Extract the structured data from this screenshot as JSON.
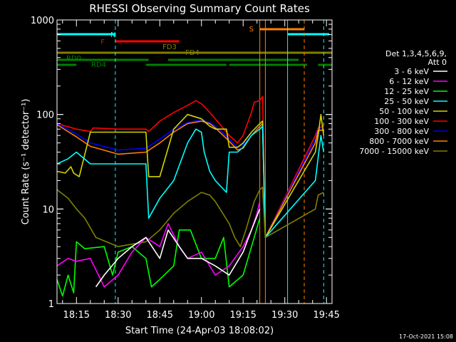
{
  "chart_data": {
    "type": "line",
    "title": "RHESSI Observing Summary Count Rates",
    "xlabel": "Start Time (24-Apr-03 18:08:02)",
    "ylabel": "Count Rate (s⁻¹ detector⁻¹)",
    "yscale": "log",
    "xlim": [
      "18:08",
      "19:47"
    ],
    "ylim": [
      1,
      1000
    ],
    "x_ticks": [
      "18:15",
      "18:30",
      "18:45",
      "19:00",
      "19:15",
      "19:30",
      "19:45"
    ],
    "y_ticks": [
      "1",
      "10",
      "100",
      "1000"
    ],
    "footer": "17-Oct-2021 15:08",
    "legend": {
      "header": [
        "Det 1,3,4,5,6,9,",
        "Att 0"
      ],
      "placement": "right",
      "entries": [
        {
          "label": "3 - 6 keV",
          "color": "#ffffff"
        },
        {
          "label": "6 - 12 keV",
          "color": "#ff00ff"
        },
        {
          "label": "12 - 25 keV",
          "color": "#00ff00"
        },
        {
          "label": "25 - 50 keV",
          "color": "#00ffff"
        },
        {
          "label": "50 - 100 keV",
          "color": "#d4d400"
        },
        {
          "label": "100 - 300 keV",
          "color": "#ff0000"
        },
        {
          "label": "300 - 800 keV",
          "color": "#0000ff"
        },
        {
          "label": "800 - 7000 keV",
          "color": "#ff8000"
        },
        {
          "label": "7000 - 15000 keV",
          "color": "#808000"
        }
      ]
    },
    "flag_bars": [
      {
        "label": "N",
        "color": "#00ffff",
        "segments": [
          [
            "18:08",
            "18:29"
          ],
          [
            "19:31",
            "19:46"
          ]
        ]
      },
      {
        "label": "S",
        "color": "#ff8000",
        "segments": [
          [
            "19:21",
            "19:37"
          ]
        ]
      },
      {
        "label": "F",
        "color": "#ff0000",
        "segments": [
          [
            "18:29",
            "18:52"
          ]
        ]
      },
      {
        "label": "FD3",
        "color": "#808000",
        "segments": [
          [
            "18:08",
            "19:47"
          ]
        ]
      },
      {
        "label": "FD4",
        "color": "#808000",
        "segments": []
      },
      {
        "label": "RD0",
        "color": "#008000",
        "segments": [
          [
            "18:08",
            "18:41"
          ],
          [
            "18:48",
            "19:35"
          ]
        ]
      },
      {
        "label": "RD4",
        "color": "#008000",
        "segments": [
          [
            "18:08",
            "18:15"
          ],
          [
            "18:40",
            "19:09"
          ],
          [
            "19:10",
            "19:38"
          ],
          [
            "19:42",
            "19:47"
          ]
        ]
      }
    ],
    "vertical_markers": [
      {
        "x": "18:29",
        "color": "#00ffff",
        "style": "dashed"
      },
      {
        "x": "19:21",
        "color": "#ff8000",
        "style": "solid"
      },
      {
        "x": "19:23",
        "color": "#ff8000",
        "style": "solid"
      },
      {
        "x": "19:31",
        "color": "#00ffff",
        "style": "solid"
      },
      {
        "x": "19:37",
        "color": "#ff8000",
        "style": "dashed"
      },
      {
        "x": "19:44",
        "color": "#00ffff",
        "style": "dashed"
      }
    ],
    "series": [
      {
        "name": "100 - 300 keV",
        "color": "#ff0000",
        "points": [
          [
            "18:08",
            80
          ],
          [
            "18:15",
            70
          ],
          [
            "18:20",
            66
          ],
          [
            "18:21",
            72
          ],
          [
            "18:30",
            70
          ],
          [
            "18:40",
            70
          ],
          [
            "18:41",
            66
          ],
          [
            "18:45",
            85
          ],
          [
            "18:50",
            105
          ],
          [
            "18:55",
            125
          ],
          [
            "18:58",
            140
          ],
          [
            "19:00",
            130
          ],
          [
            "19:03",
            105
          ],
          [
            "19:05",
            90
          ],
          [
            "19:10",
            60
          ],
          [
            "19:13",
            50
          ],
          [
            "19:15",
            60
          ],
          [
            "19:18",
            105
          ],
          [
            "19:19",
            135
          ],
          [
            "19:21",
            140
          ],
          [
            "19:22",
            155
          ],
          [
            "19:23",
            5
          ],
          [
            "19:41",
            60
          ],
          [
            "19:42",
            72
          ],
          [
            "19:44",
            75
          ]
        ]
      },
      {
        "name": "300 - 800 keV",
        "color": "#0000ff",
        "points": [
          [
            "18:08",
            80
          ],
          [
            "18:15",
            62
          ],
          [
            "18:20",
            50
          ],
          [
            "18:30",
            42
          ],
          [
            "18:40",
            44
          ],
          [
            "18:45",
            55
          ],
          [
            "18:50",
            70
          ],
          [
            "18:55",
            82
          ],
          [
            "19:00",
            88
          ],
          [
            "19:03",
            82
          ],
          [
            "19:05",
            75
          ],
          [
            "19:10",
            55
          ],
          [
            "19:13",
            45
          ],
          [
            "19:15",
            48
          ],
          [
            "19:18",
            65
          ],
          [
            "19:21",
            80
          ],
          [
            "19:22",
            85
          ],
          [
            "19:23",
            5
          ],
          [
            "19:41",
            55
          ],
          [
            "19:42",
            70
          ],
          [
            "19:44",
            70
          ]
        ]
      },
      {
        "name": "800 - 7000 keV",
        "color": "#ff8000",
        "points": [
          [
            "18:08",
            78
          ],
          [
            "18:15",
            58
          ],
          [
            "18:20",
            46
          ],
          [
            "18:30",
            38
          ],
          [
            "18:40",
            40
          ],
          [
            "18:45",
            50
          ],
          [
            "18:50",
            65
          ],
          [
            "18:55",
            80
          ],
          [
            "19:00",
            85
          ],
          [
            "19:03",
            80
          ],
          [
            "19:05",
            72
          ],
          [
            "19:10",
            52
          ],
          [
            "19:13",
            42
          ],
          [
            "19:15",
            44
          ],
          [
            "19:18",
            60
          ],
          [
            "19:21",
            75
          ],
          [
            "19:22",
            80
          ],
          [
            "19:23",
            5
          ],
          [
            "19:41",
            50
          ],
          [
            "19:42",
            68
          ],
          [
            "19:44",
            68
          ]
        ]
      },
      {
        "name": "50 - 100 keV",
        "color": "#d4d400",
        "points": [
          [
            "18:08",
            25
          ],
          [
            "18:11",
            24
          ],
          [
            "18:13",
            28
          ],
          [
            "18:14",
            24
          ],
          [
            "18:16",
            22
          ],
          [
            "18:20",
            65
          ],
          [
            "18:30",
            65
          ],
          [
            "18:40",
            65
          ],
          [
            "18:41",
            22
          ],
          [
            "18:45",
            22
          ],
          [
            "18:50",
            70
          ],
          [
            "18:55",
            100
          ],
          [
            "19:00",
            90
          ],
          [
            "19:03",
            75
          ],
          [
            "19:05",
            70
          ],
          [
            "19:09",
            70
          ],
          [
            "19:10",
            45
          ],
          [
            "19:13",
            45
          ],
          [
            "19:15",
            50
          ],
          [
            "19:18",
            65
          ],
          [
            "19:21",
            80
          ],
          [
            "19:22",
            85
          ],
          [
            "19:23",
            5
          ],
          [
            "19:41",
            40
          ],
          [
            "19:42",
            60
          ],
          [
            "19:43",
            100
          ],
          [
            "19:44",
            60
          ]
        ]
      },
      {
        "name": "25 - 50 keV",
        "color": "#00ffff",
        "points": [
          [
            "18:08",
            30
          ],
          [
            "18:12",
            34
          ],
          [
            "18:15",
            40
          ],
          [
            "18:20",
            30
          ],
          [
            "18:30",
            30
          ],
          [
            "18:40",
            30
          ],
          [
            "18:41",
            8
          ],
          [
            "18:45",
            13
          ],
          [
            "18:50",
            20
          ],
          [
            "18:55",
            50
          ],
          [
            "18:58",
            70
          ],
          [
            "19:00",
            65
          ],
          [
            "19:01",
            40
          ],
          [
            "19:03",
            25
          ],
          [
            "19:05",
            20
          ],
          [
            "19:09",
            15
          ],
          [
            "19:10",
            40
          ],
          [
            "19:13",
            40
          ],
          [
            "19:15",
            45
          ],
          [
            "19:18",
            60
          ],
          [
            "19:21",
            70
          ],
          [
            "19:22",
            75
          ],
          [
            "19:23",
            5
          ],
          [
            "19:41",
            20
          ],
          [
            "19:42",
            35
          ],
          [
            "19:43",
            60
          ],
          [
            "19:44",
            40
          ]
        ]
      },
      {
        "name": "7000 - 15000 keV",
        "color": "#808000",
        "points": [
          [
            "18:08",
            16
          ],
          [
            "18:12",
            13
          ],
          [
            "18:15",
            10
          ],
          [
            "18:18",
            8
          ],
          [
            "18:22",
            5
          ],
          [
            "18:30",
            4
          ],
          [
            "18:40",
            4.5
          ],
          [
            "18:45",
            6
          ],
          [
            "18:50",
            9
          ],
          [
            "18:55",
            12
          ],
          [
            "19:00",
            15
          ],
          [
            "19:03",
            14
          ],
          [
            "19:05",
            12
          ],
          [
            "19:10",
            7
          ],
          [
            "19:12",
            5
          ],
          [
            "19:14",
            4
          ],
          [
            "19:16",
            6
          ],
          [
            "19:19",
            12
          ],
          [
            "19:21",
            16
          ],
          [
            "19:22",
            17
          ],
          [
            "19:23",
            5
          ],
          [
            "19:41",
            10
          ],
          [
            "19:42",
            14
          ],
          [
            "19:44",
            15
          ]
        ]
      },
      {
        "name": "12 - 25 keV",
        "color": "#00ff00",
        "points": [
          [
            "18:08",
            1.8
          ],
          [
            "18:10",
            1.2
          ],
          [
            "18:12",
            2
          ],
          [
            "18:14",
            1.3
          ],
          [
            "18:15",
            4.5
          ],
          [
            "18:18",
            3.8
          ],
          [
            "18:25",
            4
          ],
          [
            "18:28",
            2
          ],
          [
            "18:30",
            3.5
          ],
          [
            "18:35",
            4
          ],
          [
            "18:40",
            3
          ],
          [
            "18:42",
            1.5
          ],
          [
            "18:45",
            1.8
          ],
          [
            "18:50",
            2.5
          ],
          [
            "18:52",
            6
          ],
          [
            "18:56",
            6
          ],
          [
            "19:00",
            3
          ],
          [
            "19:05",
            3
          ],
          [
            "19:08",
            5
          ],
          [
            "19:10",
            1.5
          ],
          [
            "19:15",
            2
          ],
          [
            "19:19",
            5
          ],
          [
            "19:21",
            8
          ]
        ]
      },
      {
        "name": "6 - 12 keV",
        "color": "#ff00ff",
        "points": [
          [
            "18:08",
            2.5
          ],
          [
            "18:12",
            3
          ],
          [
            "18:15",
            2.8
          ],
          [
            "18:20",
            3
          ],
          [
            "18:25",
            1.5
          ],
          [
            "18:30",
            2
          ],
          [
            "18:35",
            3.5
          ],
          [
            "18:40",
            5
          ],
          [
            "18:45",
            4
          ],
          [
            "18:48",
            7
          ],
          [
            "18:52",
            4
          ],
          [
            "18:55",
            3
          ],
          [
            "19:00",
            3.5
          ],
          [
            "19:05",
            2
          ],
          [
            "19:10",
            2.5
          ],
          [
            "19:15",
            4
          ],
          [
            "19:18",
            6
          ],
          [
            "19:20",
            9
          ],
          [
            "19:21",
            12
          ]
        ]
      },
      {
        "name": "3 - 6 keV",
        "color": "#ffffff",
        "points": [
          [
            "18:22",
            1.5
          ],
          [
            "18:25",
            2
          ],
          [
            "18:30",
            3
          ],
          [
            "18:35",
            4
          ],
          [
            "18:40",
            5
          ],
          [
            "18:45",
            3
          ],
          [
            "18:48",
            6
          ],
          [
            "18:52",
            4
          ],
          [
            "18:55",
            3
          ],
          [
            "19:00",
            3
          ],
          [
            "19:05",
            2.5
          ],
          [
            "19:10",
            2
          ],
          [
            "19:15",
            3.5
          ],
          [
            "19:18",
            6
          ],
          [
            "19:21",
            10
          ]
        ]
      }
    ]
  }
}
